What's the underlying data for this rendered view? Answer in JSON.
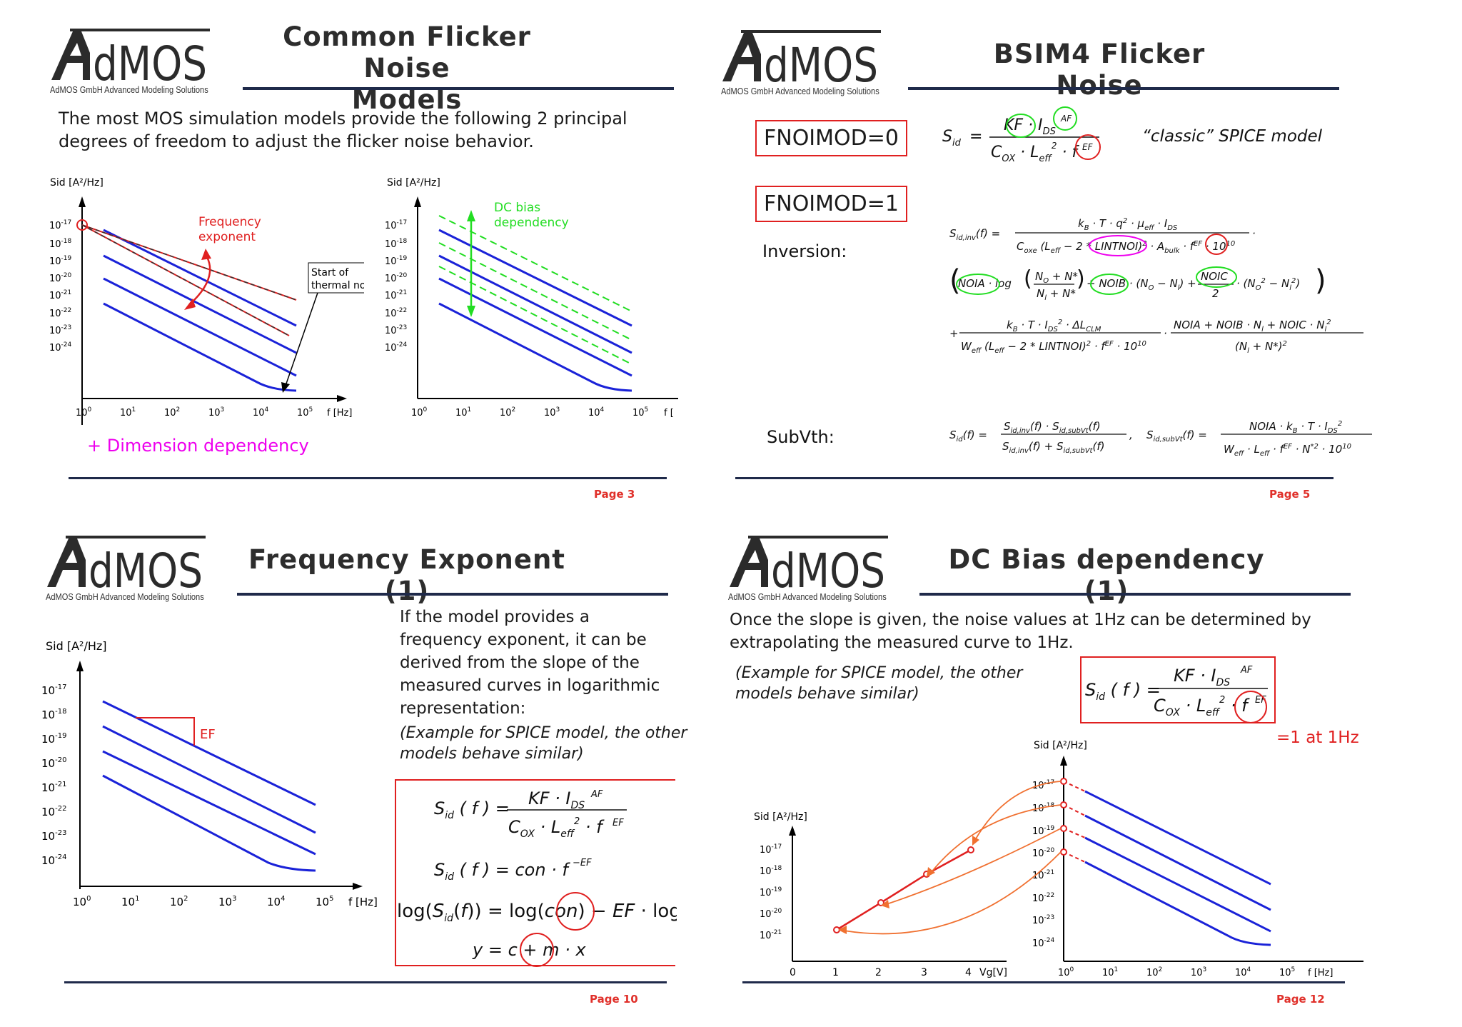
{
  "brand": {
    "logo_text": "AdMOS",
    "logo_subtitle": "AdMOS GmbH Advanced Modeling Solutions"
  },
  "colors": {
    "accent_red": "#e02020",
    "curve_blue": "#1a22d8",
    "green": "#22dd22",
    "magenta": "#ee00ee",
    "orange": "#f07030",
    "rule": "#1f2a4a"
  },
  "slide1": {
    "title_line1": "Common Flicker Noise",
    "title_line2": "Models",
    "intro_line1": "The most MOS simulation models provide the following 2 principal",
    "intro_line2": "degrees of freedom to adjust the flicker noise behavior.",
    "ylabel": "Sid [A²/Hz]",
    "xlabel": "f [Hz]",
    "ylabel2": "Sid [A²/Hz]",
    "xlabel2": "f [",
    "annot_freq_exp_1": "Frequency",
    "annot_freq_exp_2": "exponent",
    "annot_thermal_1": "Start of",
    "annot_thermal_2": "thermal noise",
    "annot_dc_1": "DC bias",
    "annot_dc_2": "dependency",
    "dimension_note": "+ Dimension dependency",
    "page": "Page 3"
  },
  "slide2": {
    "title": "BSIM4 Flicker Noise",
    "box0": "FNOIMOD=0",
    "box1": "FNOIMOD=1",
    "classic": "“classic” SPICE model",
    "inversion": "Inversion:",
    "subvth": "SubVth:",
    "page": "Page 5"
  },
  "slide3": {
    "title": "Frequency Exponent (1)",
    "text_lines": [
      "If the model provides a",
      "frequency exponent, it can be",
      "derived from the slope of the",
      "measured curves in logarithmic",
      "representation:"
    ],
    "note_line1": "(Example for SPICE model, the other",
    "note_line2": "models behave similar)",
    "ylabel": "Sid [A²/Hz]",
    "xlabel": "f [Hz]",
    "ef_label": "EF",
    "page": "Page 10"
  },
  "slide4": {
    "title": "DC Bias dependency (1)",
    "intro_line1": "Once the slope is given, the noise values at 1Hz can be determined by",
    "intro_line2": "extrapolating the measured curve to 1Hz.",
    "note_line1": "(Example for SPICE model, the other",
    "note_line2": "models behave similar)",
    "at1hz": "=1 at 1Hz",
    "ylabel_left": "Sid [A²/Hz]",
    "ylabel_right": "Sid [A²/Hz]",
    "xlabel_left": "Vg[V]",
    "xlabel_right": "f [Hz]",
    "page": "Page 12"
  },
  "chart_data": [
    {
      "type": "line",
      "xlabel": "f [Hz]",
      "ylabel": "Sid [A²/Hz]",
      "log_x": true,
      "log_y": true,
      "x_ticks": [
        "10^0",
        "10^1",
        "10^2",
        "10^3",
        "10^4",
        "10^5"
      ],
      "y_ticks": [
        "10^-17",
        "10^-18",
        "10^-19",
        "10^-20",
        "10^-21",
        "10^-22",
        "10^-23",
        "10^-24"
      ],
      "annotations": [
        "Frequency exponent",
        "Start of thermal noise"
      ]
    },
    {
      "type": "line",
      "xlabel": "f [",
      "ylabel": "Sid [A²/Hz]",
      "log_x": true,
      "log_y": true,
      "x_ticks": [
        "10^0",
        "10^1",
        "10^2",
        "10^3",
        "10^4",
        "10^5"
      ],
      "y_ticks": [
        "10^-17",
        "10^-18",
        "10^-19",
        "10^-20",
        "10^-21",
        "10^-22",
        "10^-23",
        "10^-24"
      ],
      "annotations": [
        "DC bias dependency"
      ]
    },
    {
      "type": "line",
      "xlabel": "f [Hz]",
      "ylabel": "Sid [A²/Hz]",
      "log_x": true,
      "log_y": true,
      "x_ticks": [
        "10^0",
        "10^1",
        "10^2",
        "10^3",
        "10^4",
        "10^5"
      ],
      "y_ticks": [
        "10^-17",
        "10^-18",
        "10^-19",
        "10^-20",
        "10^-21",
        "10^-22",
        "10^-23",
        "10^-24"
      ],
      "annotations": [
        "EF"
      ]
    },
    {
      "type": "line",
      "xlabel": "Vg[V]",
      "ylabel": "Sid [A²/Hz]",
      "log_y": true,
      "x": [
        1,
        2,
        3,
        4
      ],
      "x_ticks": [
        "0",
        "1",
        "2",
        "3",
        "4"
      ],
      "y_ticks": [
        "10^-17",
        "10^-18",
        "10^-19",
        "10^-20",
        "10^-21"
      ]
    },
    {
      "type": "line",
      "xlabel": "f [Hz]",
      "ylabel": "Sid [A²/Hz]",
      "log_x": true,
      "log_y": true,
      "x_ticks": [
        "10^0",
        "10^1",
        "10^2",
        "10^3",
        "10^4",
        "10^5"
      ],
      "y_ticks": [
        "10^-17",
        "10^-18",
        "10^-19",
        "10^-20",
        "10^-21",
        "10^-22",
        "10^-23",
        "10^-24"
      ]
    }
  ]
}
